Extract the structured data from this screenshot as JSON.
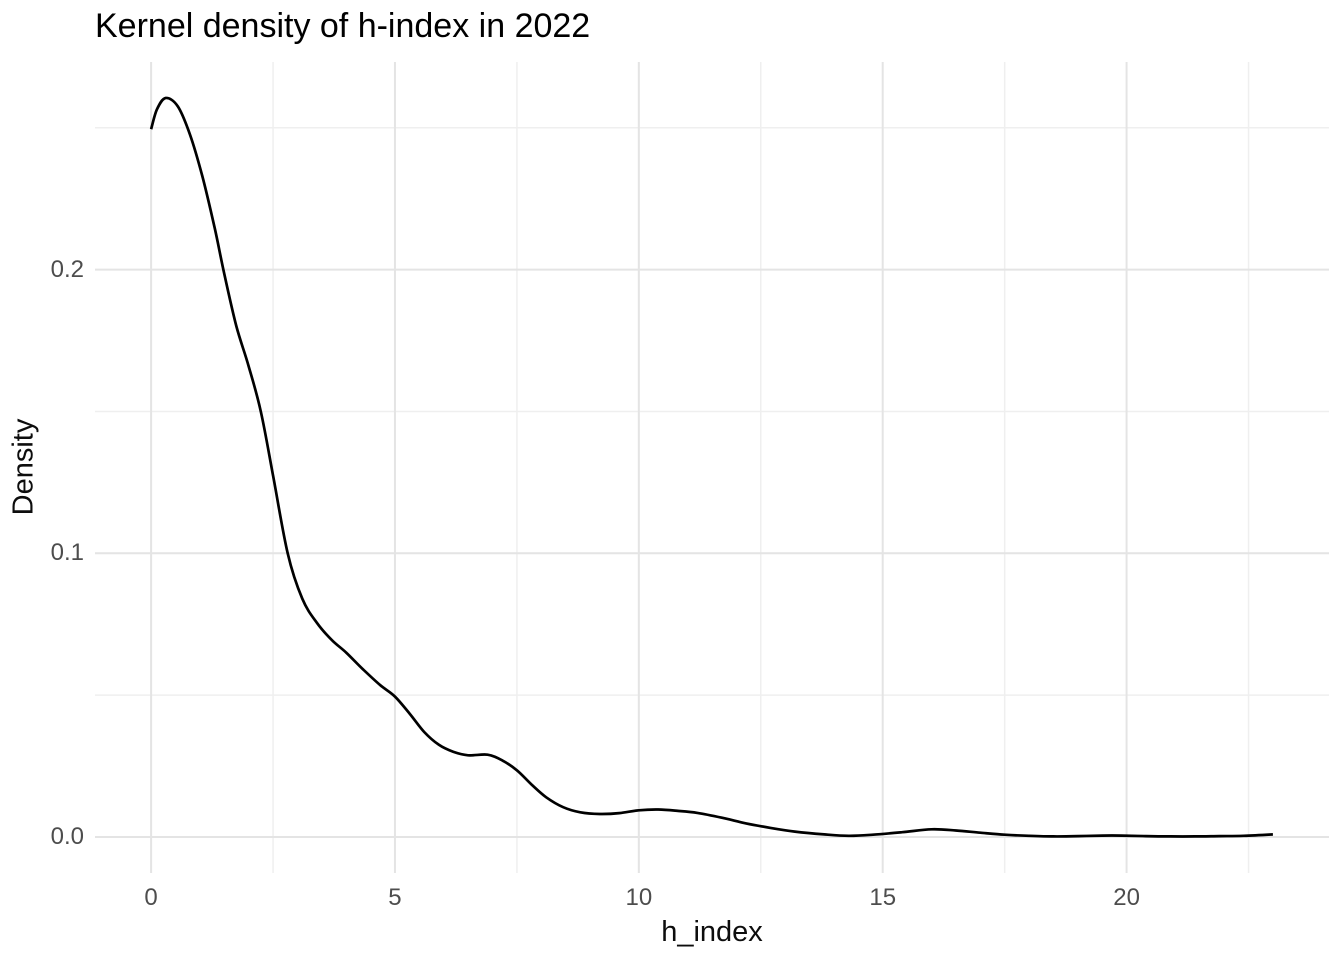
{
  "chart_data": {
    "type": "line",
    "subtype": "kernel-density-curve",
    "title": "Kernel density of h-index in 2022",
    "xlabel": "h_index",
    "ylabel": "Density",
    "xlim": [
      -1.15,
      24.15
    ],
    "ylim": [
      -0.0127,
      0.2732
    ],
    "x_tick_values": [
      0,
      5,
      10,
      15,
      20
    ],
    "x_tick_labels": [
      "0",
      "5",
      "10",
      "15",
      "20"
    ],
    "y_tick_values": [
      0.0,
      0.1,
      0.2
    ],
    "y_tick_labels": [
      "0.0",
      "0.1",
      "0.2"
    ],
    "x_minor_gridlines": [
      2.5,
      7.5,
      12.5,
      17.5,
      22.5
    ],
    "y_minor_gridlines": [
      0.05,
      0.15,
      0.25
    ],
    "grid": true,
    "legend": false,
    "line_color": "#000000",
    "line_width": 2.7,
    "grid_major_color": "#E4E4E4",
    "grid_minor_color": "#EFEFEF",
    "background_color": "#FFFFFF",
    "tick_label_color": "#4D4D4D",
    "points": [
      [
        0.0,
        0.2495
      ],
      [
        0.12,
        0.2565
      ],
      [
        0.3,
        0.2605
      ],
      [
        0.55,
        0.2575
      ],
      [
        0.8,
        0.2475
      ],
      [
        1.05,
        0.233
      ],
      [
        1.3,
        0.215
      ],
      [
        1.5,
        0.1985
      ],
      [
        1.75,
        0.18
      ],
      [
        2.0,
        0.166
      ],
      [
        2.25,
        0.15
      ],
      [
        2.5,
        0.1275
      ],
      [
        2.8,
        0.1
      ],
      [
        3.1,
        0.084
      ],
      [
        3.4,
        0.0755
      ],
      [
        3.7,
        0.0695
      ],
      [
        4.0,
        0.065
      ],
      [
        4.35,
        0.059
      ],
      [
        4.7,
        0.0535
      ],
      [
        5.0,
        0.0495
      ],
      [
        5.3,
        0.0435
      ],
      [
        5.6,
        0.037
      ],
      [
        5.9,
        0.0325
      ],
      [
        6.2,
        0.03
      ],
      [
        6.5,
        0.0288
      ],
      [
        6.9,
        0.029
      ],
      [
        7.2,
        0.027
      ],
      [
        7.5,
        0.0235
      ],
      [
        7.8,
        0.0185
      ],
      [
        8.1,
        0.014
      ],
      [
        8.45,
        0.0105
      ],
      [
        8.8,
        0.0087
      ],
      [
        9.2,
        0.0081
      ],
      [
        9.6,
        0.0084
      ],
      [
        10.0,
        0.0094
      ],
      [
        10.4,
        0.0097
      ],
      [
        10.8,
        0.0092
      ],
      [
        11.2,
        0.0085
      ],
      [
        11.7,
        0.0068
      ],
      [
        12.2,
        0.0048
      ],
      [
        12.7,
        0.0032
      ],
      [
        13.2,
        0.0019
      ],
      [
        13.8,
        0.0009
      ],
      [
        14.3,
        0.0004
      ],
      [
        14.8,
        0.0008
      ],
      [
        15.4,
        0.0017
      ],
      [
        16.0,
        0.0027
      ],
      [
        16.5,
        0.0023
      ],
      [
        17.0,
        0.0015
      ],
      [
        17.5,
        0.0008
      ],
      [
        18.0,
        0.0004
      ],
      [
        18.5,
        0.0002
      ],
      [
        19.0,
        0.0003
      ],
      [
        19.5,
        0.0005
      ],
      [
        19.9,
        0.0005
      ],
      [
        20.4,
        0.0003
      ],
      [
        20.9,
        0.0002
      ],
      [
        21.4,
        0.0002
      ],
      [
        21.9,
        0.0003
      ],
      [
        22.4,
        0.0004
      ],
      [
        23.0,
        0.0009
      ]
    ]
  }
}
